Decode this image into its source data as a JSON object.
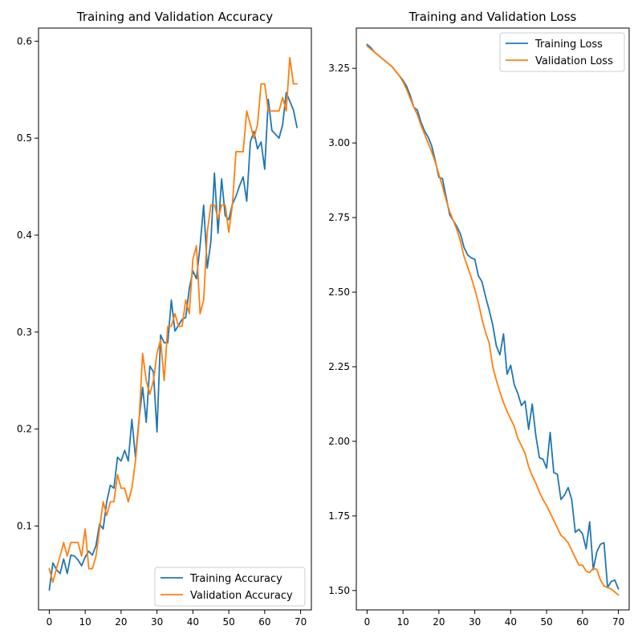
{
  "colors": {
    "training": "#1f77b4",
    "validation": "#ff7f0e"
  },
  "chart_data": [
    {
      "type": "line",
      "title": "Training and Validation Accuracy",
      "xlabel": "",
      "ylabel": "",
      "xlim": [
        -3,
        73
      ],
      "ylim": [
        0.0135,
        0.6135
      ],
      "xticks": [
        0,
        10,
        20,
        30,
        40,
        50,
        60,
        70
      ],
      "yticks": [
        0.1,
        0.2,
        0.3,
        0.4,
        0.5,
        0.6
      ],
      "ytick_labels": [
        "0.1",
        "0.2",
        "0.3",
        "0.4",
        "0.5",
        "0.6"
      ],
      "grid": false,
      "legend": "lower right",
      "series": [
        {
          "name": "Training Accuracy",
          "values": [
            0.034,
            0.062,
            0.055,
            0.051,
            0.066,
            0.051,
            0.07,
            0.069,
            0.065,
            0.059,
            0.068,
            0.074,
            0.07,
            0.08,
            0.102,
            0.097,
            0.125,
            0.142,
            0.139,
            0.171,
            0.167,
            0.178,
            0.167,
            0.21,
            0.171,
            0.21,
            0.243,
            0.207,
            0.265,
            0.259,
            0.197,
            0.297,
            0.289,
            0.289,
            0.333,
            0.301,
            0.307,
            0.313,
            0.315,
            0.345,
            0.363,
            0.355,
            0.389,
            0.431,
            0.366,
            0.393,
            0.464,
            0.402,
            0.458,
            0.42,
            0.416,
            0.432,
            0.44,
            0.451,
            0.46,
            0.435,
            0.496,
            0.507,
            0.489,
            0.496,
            0.468,
            0.54,
            0.508,
            0.504,
            0.5,
            0.514,
            0.547,
            0.538,
            0.529,
            0.511
          ]
        },
        {
          "name": "Validation Accuracy",
          "values": [
            0.056,
            0.042,
            0.056,
            0.069,
            0.083,
            0.069,
            0.083,
            0.083,
            0.083,
            0.069,
            0.097,
            0.056,
            0.056,
            0.069,
            0.097,
            0.125,
            0.111,
            0.125,
            0.125,
            0.153,
            0.139,
            0.139,
            0.125,
            0.139,
            0.167,
            0.208,
            0.278,
            0.25,
            0.236,
            0.25,
            0.278,
            0.292,
            0.25,
            0.306,
            0.306,
            0.319,
            0.306,
            0.306,
            0.333,
            0.319,
            0.375,
            0.389,
            0.319,
            0.333,
            0.403,
            0.431,
            0.431,
            0.417,
            0.431,
            0.431,
            0.403,
            0.431,
            0.486,
            0.486,
            0.486,
            0.528,
            0.514,
            0.5,
            0.514,
            0.556,
            0.556,
            0.528,
            0.528,
            0.528,
            0.528,
            0.542,
            0.528,
            0.583,
            0.556,
            0.556
          ]
        }
      ]
    },
    {
      "type": "line",
      "title": "Training and Validation Loss",
      "xlabel": "",
      "ylabel": "",
      "xlim": [
        -3,
        73
      ],
      "ylim": [
        1.435,
        3.385
      ],
      "xticks": [
        0,
        10,
        20,
        30,
        40,
        50,
        60,
        70
      ],
      "yticks": [
        1.5,
        1.75,
        2.0,
        2.25,
        2.5,
        2.75,
        3.0,
        3.25
      ],
      "ytick_labels": [
        "1.50",
        "1.75",
        "2.00",
        "2.25",
        "2.50",
        "2.75",
        "3.00",
        "3.25"
      ],
      "grid": false,
      "legend": "upper right",
      "series": [
        {
          "name": "Training Loss",
          "values": [
            3.33,
            3.32,
            3.305,
            3.295,
            3.285,
            3.275,
            3.265,
            3.255,
            3.24,
            3.225,
            3.21,
            3.19,
            3.16,
            3.12,
            3.11,
            3.07,
            3.04,
            3.02,
            2.99,
            2.94,
            2.885,
            2.88,
            2.82,
            2.76,
            2.74,
            2.72,
            2.695,
            2.65,
            2.625,
            2.615,
            2.61,
            2.555,
            2.535,
            2.485,
            2.44,
            2.39,
            2.32,
            2.29,
            2.36,
            2.225,
            2.255,
            2.19,
            2.16,
            2.12,
            2.135,
            2.04,
            2.125,
            2.02,
            1.945,
            1.94,
            1.91,
            2.03,
            1.895,
            1.89,
            1.805,
            1.82,
            1.845,
            1.805,
            1.695,
            1.705,
            1.69,
            1.64,
            1.73,
            1.57,
            1.63,
            1.655,
            1.66,
            1.51,
            1.53,
            1.535,
            1.505
          ]
        },
        {
          "name": "Validation Loss",
          "values": [
            3.325,
            3.315,
            3.305,
            3.295,
            3.285,
            3.275,
            3.265,
            3.255,
            3.24,
            3.225,
            3.205,
            3.18,
            3.15,
            3.12,
            3.095,
            3.06,
            3.03,
            3.0,
            2.97,
            2.935,
            2.895,
            2.855,
            2.81,
            2.77,
            2.74,
            2.71,
            2.67,
            2.62,
            2.585,
            2.55,
            2.51,
            2.465,
            2.41,
            2.365,
            2.33,
            2.25,
            2.205,
            2.165,
            2.13,
            2.1,
            2.075,
            2.05,
            2.01,
            1.985,
            1.96,
            1.915,
            1.885,
            1.86,
            1.83,
            1.805,
            1.785,
            1.76,
            1.735,
            1.71,
            1.685,
            1.675,
            1.66,
            1.635,
            1.61,
            1.585,
            1.585,
            1.565,
            1.56,
            1.575,
            1.57,
            1.535,
            1.515,
            1.51,
            1.505,
            1.495,
            1.485
          ]
        }
      ]
    }
  ]
}
